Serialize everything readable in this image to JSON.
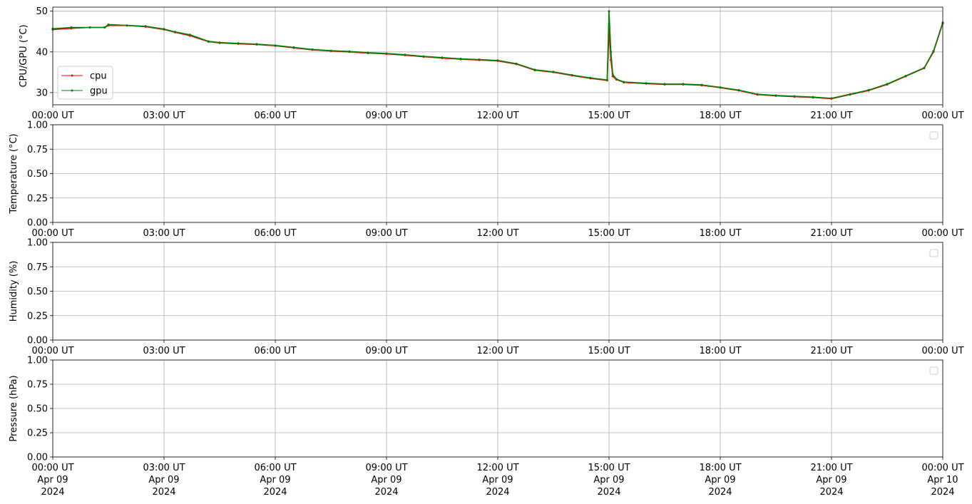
{
  "chart_data": [
    {
      "type": "line",
      "ylabel": "CPU/GPU (°C)",
      "xlabel": "",
      "ylim": [
        27,
        51
      ],
      "yticks": [
        "30",
        "40",
        "50"
      ],
      "ytick_values": [
        30,
        40,
        50
      ],
      "xticks": [
        "00:00 UT",
        "03:00 UT",
        "06:00 UT",
        "09:00 UT",
        "12:00 UT",
        "15:00 UT",
        "18:00 UT",
        "21:00 UT",
        "00:00 UT"
      ],
      "xtick_hours": [
        0,
        3,
        6,
        9,
        12,
        15,
        18,
        21,
        24
      ],
      "xlim_hours": [
        0,
        24
      ],
      "grid": true,
      "legend": "lower-left",
      "legend_entries": [
        "cpu",
        "gpu"
      ],
      "series": [
        {
          "name": "cpu",
          "color": "#ff0000",
          "x_hours": [
            0,
            0.5,
            1.0,
            1.4,
            1.5,
            2.0,
            2.5,
            3.0,
            3.3,
            3.7,
            4.2,
            4.5,
            5.0,
            5.5,
            6.0,
            6.5,
            7.0,
            7.5,
            8.0,
            8.5,
            9.0,
            9.5,
            10.0,
            10.5,
            11.0,
            11.5,
            12.0,
            12.5,
            13.0,
            13.5,
            14.0,
            14.5,
            14.95,
            15.0,
            15.05,
            15.1,
            15.2,
            15.4,
            16.0,
            16.5,
            17.0,
            17.5,
            18.0,
            18.5,
            19.0,
            19.5,
            20.0,
            20.5,
            21.0,
            21.5,
            22.0,
            22.5,
            23.0,
            23.5,
            23.75,
            24.0
          ],
          "y": [
            45.5,
            45.8,
            46.0,
            46.0,
            46.5,
            46.5,
            46.2,
            45.5,
            44.8,
            44.0,
            42.5,
            42.2,
            42.0,
            41.8,
            41.5,
            41.0,
            40.5,
            40.2,
            40.0,
            39.7,
            39.5,
            39.2,
            38.8,
            38.5,
            38.2,
            38.0,
            37.8,
            37.0,
            35.5,
            35.0,
            34.2,
            33.5,
            33.0,
            45.5,
            38.0,
            34.0,
            33.2,
            32.5,
            32.2,
            32.0,
            32.0,
            31.8,
            31.2,
            30.5,
            29.5,
            29.2,
            29.0,
            28.8,
            28.5,
            29.5,
            30.5,
            32.0,
            34.0,
            36.0,
            40.0,
            47.0
          ]
        },
        {
          "name": "gpu",
          "color": "#008000",
          "x_hours": [
            0,
            0.5,
            1.0,
            1.4,
            1.5,
            2.0,
            2.5,
            3.0,
            3.3,
            3.7,
            4.2,
            4.5,
            5.0,
            5.5,
            6.0,
            6.5,
            7.0,
            7.5,
            8.0,
            8.5,
            9.0,
            9.5,
            10.0,
            10.5,
            11.0,
            11.5,
            12.0,
            12.5,
            13.0,
            13.5,
            14.0,
            14.5,
            14.95,
            15.0,
            15.05,
            15.1,
            15.2,
            15.4,
            16.0,
            16.5,
            17.0,
            17.5,
            18.0,
            18.5,
            19.0,
            19.5,
            20.0,
            20.5,
            21.0,
            21.5,
            22.0,
            22.5,
            23.0,
            23.5,
            23.75,
            24.0
          ],
          "y": [
            45.7,
            46.0,
            46.0,
            46.0,
            46.7,
            46.5,
            46.3,
            45.6,
            44.9,
            44.2,
            42.6,
            42.3,
            42.1,
            41.9,
            41.6,
            41.1,
            40.6,
            40.3,
            40.1,
            39.8,
            39.6,
            39.3,
            38.9,
            38.6,
            38.3,
            38.1,
            37.9,
            37.1,
            35.6,
            35.1,
            34.3,
            33.6,
            33.1,
            50.0,
            40.0,
            34.5,
            33.3,
            32.6,
            32.3,
            32.1,
            32.1,
            31.9,
            31.3,
            30.6,
            29.6,
            29.3,
            29.1,
            28.9,
            28.6,
            29.6,
            30.6,
            32.1,
            34.1,
            36.1,
            40.2,
            47.2
          ]
        }
      ]
    },
    {
      "type": "line",
      "ylabel": "Temperature (°C)",
      "xlabel": "",
      "ylim": [
        0,
        1
      ],
      "yticks": [
        "0.00",
        "0.25",
        "0.50",
        "0.75",
        "1.00"
      ],
      "ytick_values": [
        0,
        0.25,
        0.5,
        0.75,
        1.0
      ],
      "xticks": [
        "00:00 UT",
        "03:00 UT",
        "06:00 UT",
        "09:00 UT",
        "12:00 UT",
        "15:00 UT",
        "18:00 UT",
        "21:00 UT",
        "00:00 UT"
      ],
      "xtick_hours": [
        0,
        3,
        6,
        9,
        12,
        15,
        18,
        21,
        24
      ],
      "xlim_hours": [
        0,
        24
      ],
      "grid": true,
      "legend": "upper-right",
      "series": []
    },
    {
      "type": "line",
      "ylabel": "Humidity (%)",
      "xlabel": "",
      "ylim": [
        0,
        1
      ],
      "yticks": [
        "0.00",
        "0.25",
        "0.50",
        "0.75",
        "1.00"
      ],
      "ytick_values": [
        0,
        0.25,
        0.5,
        0.75,
        1.0
      ],
      "xticks": [
        "00:00 UT",
        "03:00 UT",
        "06:00 UT",
        "09:00 UT",
        "12:00 UT",
        "15:00 UT",
        "18:00 UT",
        "21:00 UT",
        "00:00 UT"
      ],
      "xtick_hours": [
        0,
        3,
        6,
        9,
        12,
        15,
        18,
        21,
        24
      ],
      "xlim_hours": [
        0,
        24
      ],
      "grid": true,
      "legend": "upper-right",
      "series": []
    },
    {
      "type": "line",
      "ylabel": "Pressure (hPa)",
      "xlabel": "",
      "ylim": [
        0,
        1
      ],
      "yticks": [
        "0.00",
        "0.25",
        "0.50",
        "0.75",
        "1.00"
      ],
      "ytick_values": [
        0,
        0.25,
        0.5,
        0.75,
        1.0
      ],
      "xticks": [
        "00:00 UT",
        "03:00 UT",
        "06:00 UT",
        "09:00 UT",
        "12:00 UT",
        "15:00 UT",
        "18:00 UT",
        "21:00 UT",
        "00:00 UT"
      ],
      "xtick_dates": [
        "Apr 09",
        "Apr 09",
        "Apr 09",
        "Apr 09",
        "Apr 09",
        "Apr 09",
        "Apr 09",
        "Apr 09",
        "Apr 10"
      ],
      "xtick_years": [
        "2024",
        "2024",
        "2024",
        "2024",
        "2024",
        "2024",
        "2024",
        "2024",
        "2024"
      ],
      "xtick_hours": [
        0,
        3,
        6,
        9,
        12,
        15,
        18,
        21,
        24
      ],
      "xlim_hours": [
        0,
        24
      ],
      "grid": true,
      "legend": "upper-right",
      "series": []
    }
  ]
}
